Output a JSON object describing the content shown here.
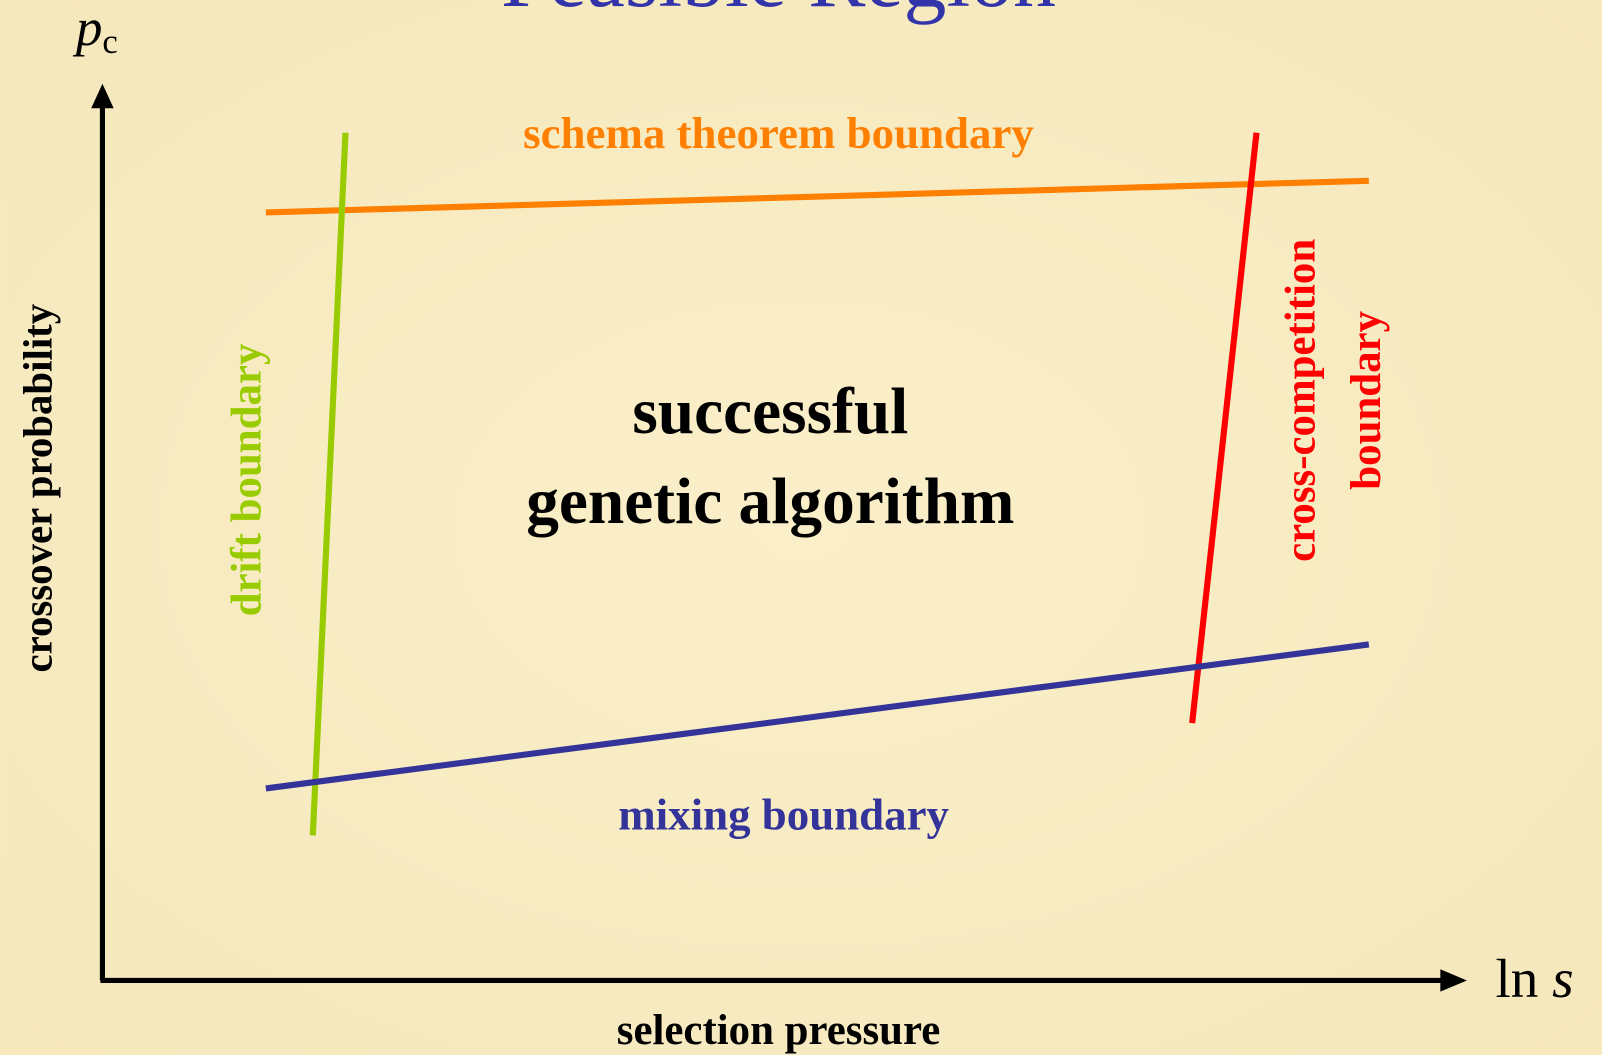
{
  "title": "Feasible Region",
  "axes": {
    "y_symbol": "p",
    "y_subscript": "c",
    "y_label": "crossover probability",
    "x_symbol_prefix": "ln",
    "x_symbol": "s",
    "x_label": "selection pressure"
  },
  "boundaries": {
    "schema": "schema theorem boundary",
    "drift": "drift boundary",
    "cross_competition": [
      "cross-competition",
      "boundary"
    ],
    "mixing": "mixing boundary"
  },
  "region": [
    "successful",
    "genetic algorithm"
  ]
}
